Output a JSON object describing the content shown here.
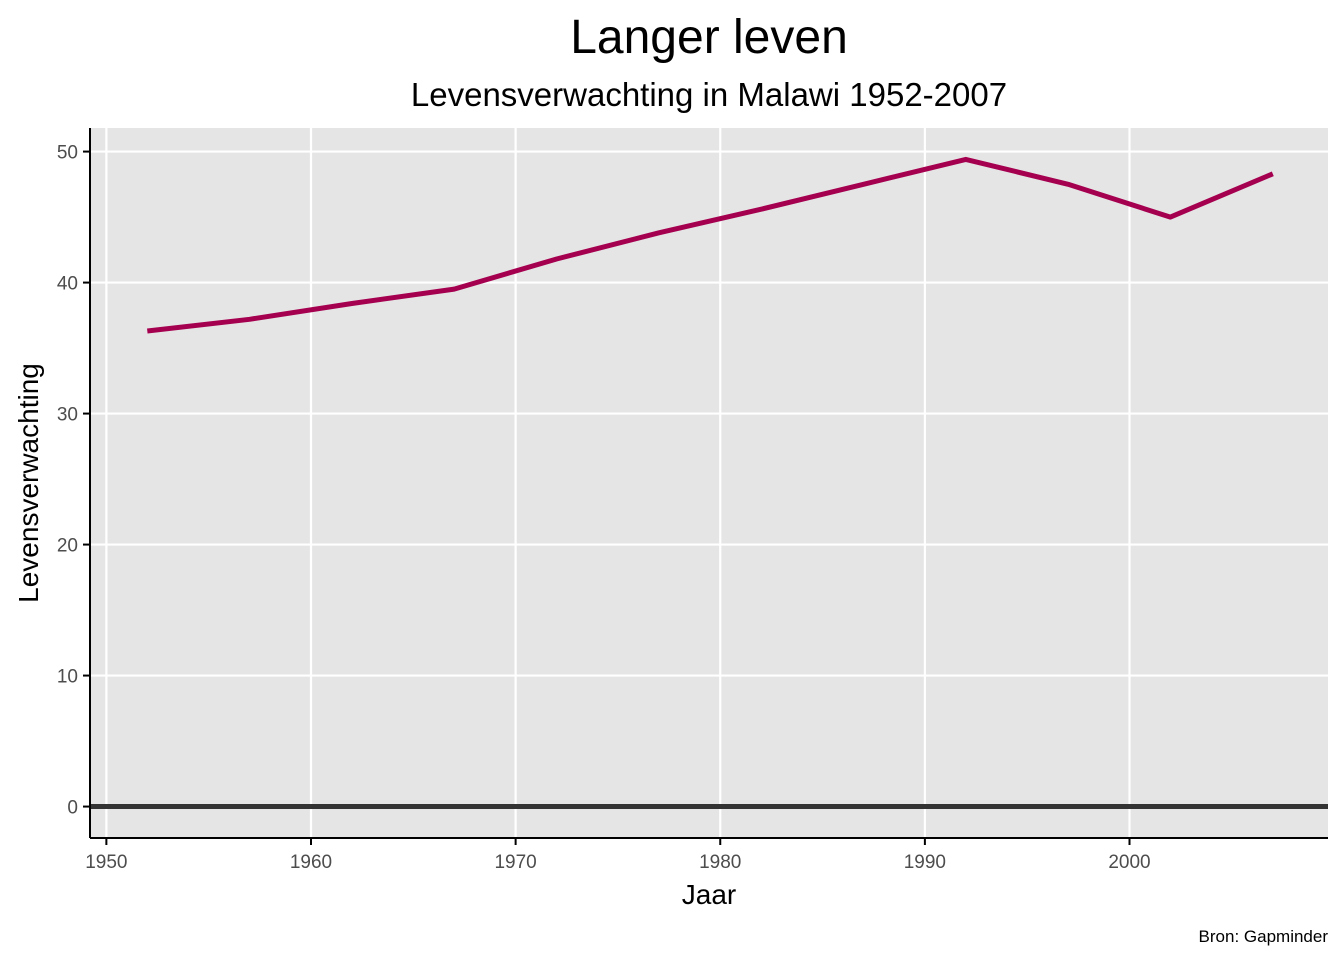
{
  "chart_data": {
    "type": "line",
    "title": "Langer leven",
    "subtitle": "Levensverwachting in Malawi 1952-2007",
    "xlabel": "Jaar",
    "ylabel": "Levensverwachting",
    "caption": "Bron: Gapminder",
    "xlim": [
      1949.2,
      2009.7
    ],
    "ylim": [
      -2.4,
      51.8
    ],
    "x_ticks": [
      1950,
      1960,
      1970,
      1980,
      1990,
      2000
    ],
    "y_ticks": [
      0,
      10,
      20,
      30,
      40,
      50
    ],
    "grid": true,
    "zero_line": true,
    "series": [
      {
        "color": "#A50050",
        "x": [
          1952,
          1957,
          1962,
          1967,
          1972,
          1977,
          1982,
          1987,
          1992,
          1997,
          2002,
          2007
        ],
        "y": [
          36.3,
          37.2,
          38.4,
          39.5,
          41.8,
          43.8,
          45.6,
          47.5,
          49.4,
          47.5,
          45.0,
          48.3
        ]
      }
    ]
  },
  "colors": {
    "panel_background": "#E5E5E5",
    "gridline": "#FFFFFF",
    "axis_line": "#000000",
    "zero_line": "#333333",
    "series_line": "#A50050"
  }
}
